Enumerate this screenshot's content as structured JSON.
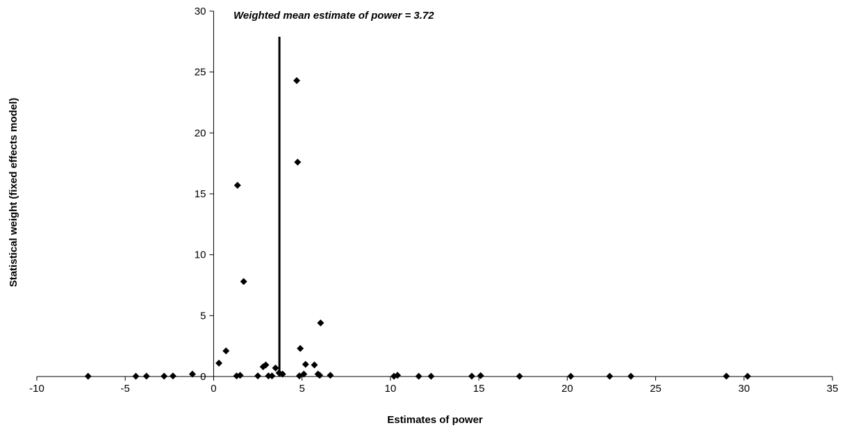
{
  "chart_data": {
    "type": "scatter",
    "title": "",
    "xlabel": "Estimates of power",
    "ylabel": "Statistical weight (fixed effects model)",
    "xlim": [
      -10,
      35
    ],
    "ylim": [
      0,
      30
    ],
    "xticks": [
      -10,
      -5,
      0,
      5,
      10,
      15,
      20,
      25,
      30,
      35
    ],
    "yticks": [
      0,
      5,
      10,
      15,
      20,
      25,
      30
    ],
    "grid": false,
    "legend": "none",
    "marker": "diamond",
    "marker_color": "#000000",
    "reference_line": {
      "x": 3.72,
      "y_top": 27.9
    },
    "annotation": "Weighted mean estimate of power = 3.72",
    "series": [
      {
        "points": [
          [
            -7.1,
            0.02
          ],
          [
            -4.4,
            0.02
          ],
          [
            -3.8,
            0.03
          ],
          [
            -2.8,
            0.03
          ],
          [
            -2.3,
            0.04
          ],
          [
            -1.2,
            0.2
          ],
          [
            0.3,
            1.1
          ],
          [
            0.7,
            2.1
          ],
          [
            1.3,
            0.05
          ],
          [
            1.35,
            15.7
          ],
          [
            1.5,
            0.1
          ],
          [
            1.7,
            7.8
          ],
          [
            2.5,
            0.05
          ],
          [
            2.8,
            0.8
          ],
          [
            2.95,
            0.95
          ],
          [
            3.1,
            0.05
          ],
          [
            3.3,
            0.05
          ],
          [
            3.5,
            0.7
          ],
          [
            3.7,
            0.3
          ],
          [
            3.9,
            0.2
          ],
          [
            4.7,
            24.3
          ],
          [
            4.75,
            17.6
          ],
          [
            4.85,
            0.05
          ],
          [
            4.9,
            2.3
          ],
          [
            5.1,
            0.2
          ],
          [
            5.2,
            1.0
          ],
          [
            5.7,
            0.95
          ],
          [
            5.9,
            0.2
          ],
          [
            6.0,
            0.1
          ],
          [
            6.05,
            4.4
          ],
          [
            6.6,
            0.1
          ],
          [
            10.2,
            0.02
          ],
          [
            10.4,
            0.1
          ],
          [
            11.6,
            0.02
          ],
          [
            12.3,
            0.02
          ],
          [
            14.6,
            0.03
          ],
          [
            15.1,
            0.07
          ],
          [
            17.3,
            0.02
          ],
          [
            20.2,
            0.02
          ],
          [
            22.4,
            0.02
          ],
          [
            23.6,
            0.02
          ],
          [
            29.0,
            0.03
          ],
          [
            30.2,
            0.02
          ]
        ]
      }
    ]
  }
}
